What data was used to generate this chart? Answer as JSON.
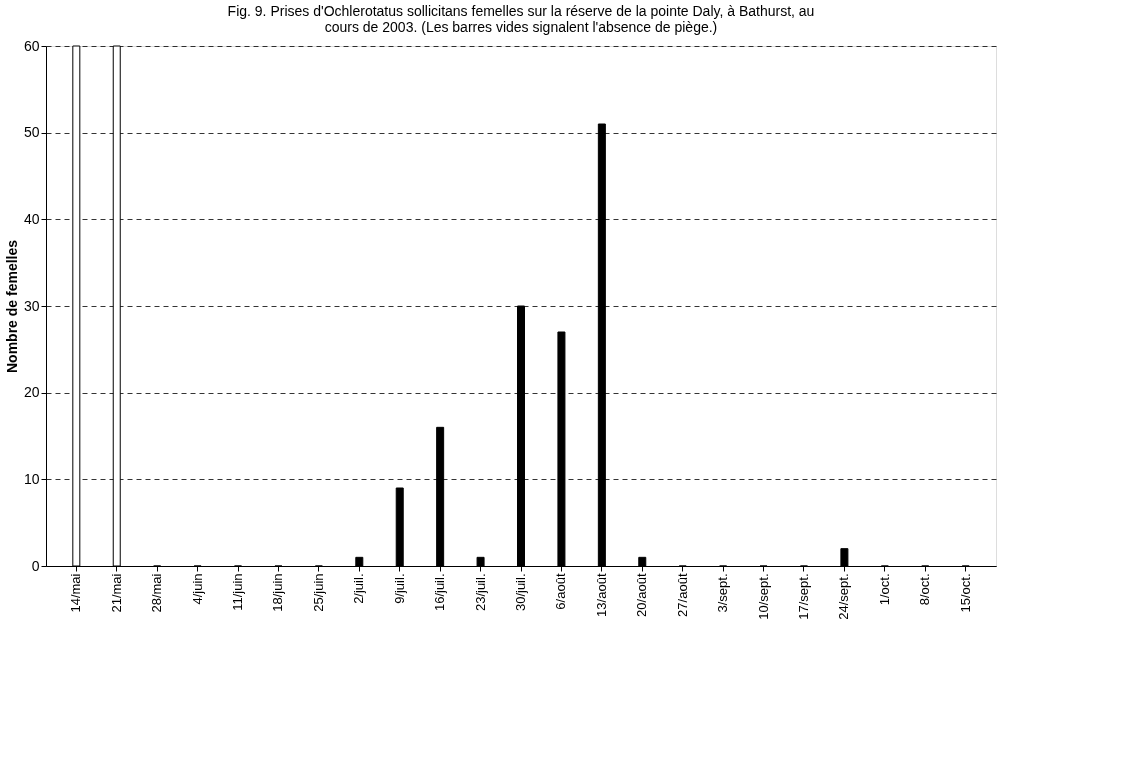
{
  "chart_data": {
    "type": "bar",
    "title": "Fig. 9. Prises d'Ochlerotatus sollicitans femelles sur la réserve de la pointe Daly, à Bathurst, au cours de 2003. (Les barres vides signalent l'absence de piège.)",
    "ylabel": "Nombre de femelles",
    "categories": [
      "14/mai",
      "21/mai",
      "28/mai",
      "4/juin",
      "11/juin",
      "18/juin",
      "25/juin",
      "2/juil.",
      "9/juil.",
      "16/juil.",
      "23/juil.",
      "30/juil.",
      "6/août",
      "13/août",
      "20/août",
      "27/août",
      "3/sept.",
      "10/sept.",
      "17/sept.",
      "24/sept.",
      "1/oct.",
      "8/oct.",
      "15/oct."
    ],
    "series": [
      {
        "color": "#ffffff",
        "values": [
          60,
          60,
          null,
          null,
          null,
          null,
          null,
          null,
          null,
          null,
          null,
          null,
          null,
          null,
          null,
          null,
          null,
          null,
          null,
          null,
          null,
          null,
          null
        ]
      },
      {
        "color": "#000000",
        "values": [
          null,
          null,
          0,
          0,
          0,
          0,
          0,
          1,
          9,
          16,
          1,
          30,
          27,
          51,
          1,
          0,
          0,
          0,
          0,
          2,
          0,
          0,
          0
        ]
      }
    ],
    "ylim": [
      0,
      60
    ],
    "yticks": [
      0,
      10,
      20,
      30,
      40,
      50,
      60
    ],
    "grid": "y"
  }
}
